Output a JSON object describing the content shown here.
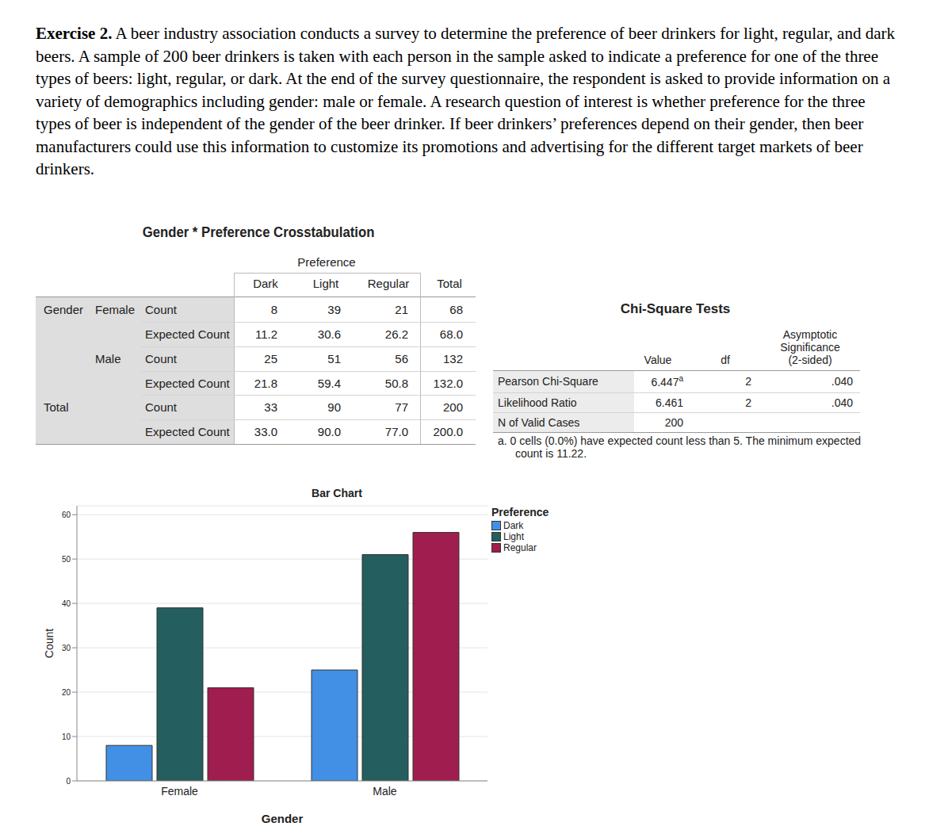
{
  "exercise": {
    "label": "Exercise 2.",
    "text": "A beer industry association conducts a survey to determine the preference of beer drinkers for light, regular, and dark beers. A sample of 200 beer drinkers is taken with each person in the sample asked to indicate a preference for one of the three types of beers: light, regular, or dark. At the end of the survey questionnaire, the respondent is asked to provide information on a variety of demographics including gender: male or female. A research question of interest is whether preference for the three types of beer is independent of the gender of the beer drinker. If beer drinkers’ preferences depend on their gender, then beer manufacturers could use this information to customize its promotions and advertising for the different target markets of beer drinkers."
  },
  "crosstab": {
    "title": "Gender * Preference Crosstabulation",
    "column_header": "Preference",
    "columns": [
      "Dark",
      "Light",
      "Regular",
      "Total"
    ],
    "rows": [
      {
        "group": "Gender",
        "subgroup": "Female",
        "stat": "Count",
        "values": [
          "8",
          "39",
          "21",
          "68"
        ]
      },
      {
        "stat": "Expected Count",
        "values": [
          "11.2",
          "30.6",
          "26.2",
          "68.0"
        ]
      },
      {
        "subgroup": "Male",
        "stat": "Count",
        "values": [
          "25",
          "51",
          "56",
          "132"
        ]
      },
      {
        "stat": "Expected Count",
        "values": [
          "21.8",
          "59.4",
          "50.8",
          "132.0"
        ]
      },
      {
        "group": "Total",
        "stat": "Count",
        "values": [
          "33",
          "90",
          "77",
          "200"
        ]
      },
      {
        "stat": "Expected Count",
        "values": [
          "33.0",
          "90.0",
          "77.0",
          "200.0"
        ]
      }
    ]
  },
  "chi_square": {
    "title": "Chi-Square Tests",
    "columns": [
      "Value",
      "df",
      "Asymptotic Significance (2-sided)"
    ],
    "rows": [
      {
        "label": "Pearson Chi-Square",
        "values": [
          "6.447",
          "2",
          ".040"
        ],
        "footnote": "a"
      },
      {
        "label": "Likelihood Ratio",
        "values": [
          "6.461",
          "2",
          ".040"
        ]
      },
      {
        "label": "N of Valid Cases",
        "values": [
          "200"
        ]
      }
    ],
    "footnote": "a. 0 cells (0.0%) have expected count less than 5. The minimum expected count is 11.22."
  },
  "chart_data": {
    "type": "bar",
    "title": "Bar Chart",
    "categories": [
      "Female",
      "Male"
    ],
    "series": [
      {
        "name": "Dark",
        "color": "#4190e5",
        "values": [
          8,
          25
        ]
      },
      {
        "name": "Light",
        "color": "#245e5f",
        "values": [
          39,
          51
        ]
      },
      {
        "name": "Regular",
        "color": "#a01d4f",
        "values": [
          21,
          56
        ]
      }
    ],
    "x_label": "Gender",
    "y_label": "Count",
    "legend_title": "Preference",
    "ylim": [
      0,
      62
    ],
    "yticks": [
      0,
      10,
      20,
      30,
      40,
      50,
      60
    ],
    "grid": true
  }
}
